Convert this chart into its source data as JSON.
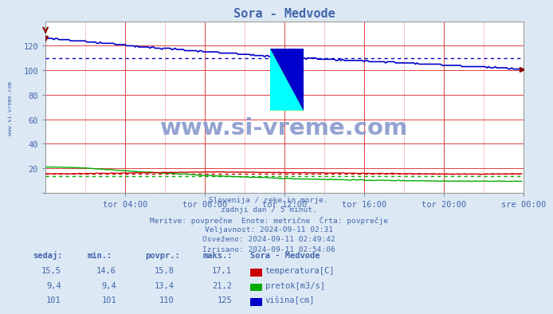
{
  "title": "Sora - Medvode",
  "bg_color": "#dce9f5",
  "plot_bg_color": "#ffffff",
  "text_color": "#4466aa",
  "grid_color_major": "#dd4444",
  "grid_color_minor": "#f4aaaa",
  "xlim": [
    0,
    288
  ],
  "ylim": [
    0,
    140
  ],
  "yticks": [
    0,
    20,
    40,
    60,
    80,
    100,
    120
  ],
  "xtick_labels": [
    "tor 04:00",
    "tor 08:00",
    "tor 12:00",
    "tor 16:00",
    "tor 20:00",
    "sre 00:00"
  ],
  "xtick_positions": [
    48,
    96,
    144,
    192,
    240,
    288
  ],
  "temp_avg": 15.8,
  "pretok_avg": 13.4,
  "visina_avg": 110,
  "temp_color": "#cc0000",
  "pretok_color": "#00aa00",
  "visina_color": "#0000cc",
  "watermark_text": "www.si-vreme.com",
  "watermark_color": "#8899cc",
  "left_label": "www.si-vreme.com",
  "info_lines": [
    "Slovenija / reke in morje.",
    "zadnji dan / 5 minut.",
    "Meritve: povprečne  Enote: metrične  Črta: povprečje",
    "Veljavnost: 2024-09-11 02:31",
    "Osveženo: 2024-09-11 02:49:42",
    "Izrisano: 2024-09-11 02:54:06"
  ],
  "table_header": [
    "sedaj:",
    "min.:",
    "povpr.:",
    "maks.:",
    "Sora - Medvode"
  ],
  "table_rows": [
    [
      "15,5",
      "14,6",
      "15,8",
      "17,1",
      "temperatura[C]"
    ],
    [
      "9,4",
      "9,4",
      "13,4",
      "21,2",
      "pretok[m3/s]"
    ],
    [
      "101",
      "101",
      "110",
      "125",
      "višina[cm]"
    ]
  ],
  "legend_colors": [
    "#cc0000",
    "#00aa00",
    "#0000cc"
  ],
  "icon_colors": {
    "yellow": "#ffff00",
    "cyan": "#00ffff",
    "blue": "#0000cc"
  }
}
